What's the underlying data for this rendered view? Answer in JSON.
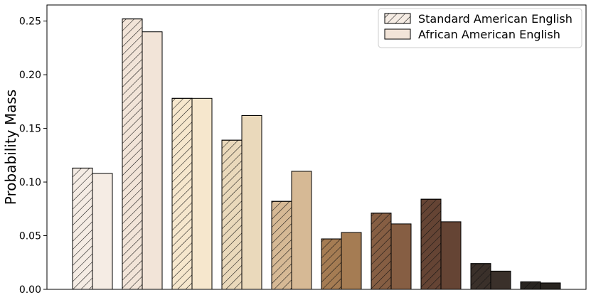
{
  "chart_data": {
    "type": "bar",
    "ylabel": "Probability Mass",
    "ylim": [
      0,
      0.265
    ],
    "yticks": [
      "0.00",
      "0.05",
      "0.10",
      "0.15",
      "0.20",
      "0.25"
    ],
    "grid": false,
    "legend_position": "top-right",
    "categories": [
      "",
      "",
      "",
      "",
      "",
      "",
      "",
      "",
      "",
      ""
    ],
    "series": [
      {
        "name": "Standard American English",
        "hatched": true,
        "values": [
          0.113,
          0.252,
          0.178,
          0.139,
          0.082,
          0.047,
          0.071,
          0.084,
          0.024,
          0.007
        ]
      },
      {
        "name": "African American English",
        "hatched": false,
        "values": [
          0.108,
          0.24,
          0.178,
          0.162,
          0.11,
          0.053,
          0.061,
          0.063,
          0.017,
          0.006
        ]
      }
    ],
    "bar_colors": [
      "#f5ece4",
      "#f2e4d8",
      "#f6e7cd",
      "#ead9bb",
      "#d6b995",
      "#a57c53",
      "#865e43",
      "#654434",
      "#3a302a",
      "#282420"
    ]
  }
}
